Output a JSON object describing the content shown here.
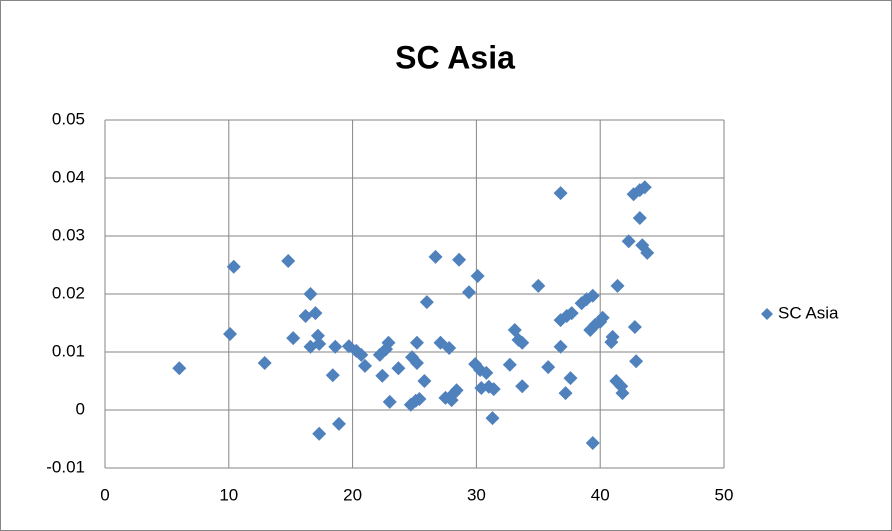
{
  "chart_data": {
    "type": "scatter",
    "title": "SC Asia",
    "x": [
      6.0,
      10.1,
      10.4,
      12.9,
      14.8,
      15.2,
      16.2,
      16.6,
      16.6,
      17.0,
      17.2,
      17.3,
      17.3,
      18.4,
      18.6,
      18.9,
      19.7,
      20.3,
      20.7,
      21.0,
      22.2,
      22.4,
      22.7,
      22.9,
      23.0,
      23.7,
      24.7,
      24.8,
      25.1,
      25.2,
      25.2,
      25.4,
      25.8,
      26.0,
      26.7,
      27.1,
      27.5,
      27.8,
      28.0,
      28.2,
      28.4,
      28.6,
      29.4,
      29.9,
      30.1,
      30.3,
      30.4,
      30.8,
      31.0,
      31.3,
      31.4,
      32.7,
      33.1,
      33.4,
      33.7,
      33.7,
      35.0,
      35.8,
      36.8,
      36.8,
      36.8,
      37.2,
      37.3,
      37.6,
      37.7,
      38.5,
      38.9,
      39.2,
      39.4,
      39.4,
      39.6,
      40.0,
      40.2,
      40.9,
      41.0,
      41.3,
      41.4,
      41.7,
      41.8,
      42.3,
      42.7,
      42.8,
      42.9,
      43.2,
      43.2,
      43.4,
      43.6,
      43.8
    ],
    "series": [
      {
        "name": "SC Asia",
        "color": "#4f81bd",
        "values": [
          0.0072,
          0.0131,
          0.0247,
          0.0081,
          0.0257,
          0.0124,
          0.0162,
          0.02,
          0.0109,
          0.0167,
          0.0128,
          0.0114,
          -0.0041,
          0.006,
          0.0109,
          -0.0024,
          0.011,
          0.0102,
          0.0095,
          0.0076,
          0.0095,
          0.0059,
          0.0105,
          0.0116,
          0.0014,
          0.0072,
          0.0009,
          0.0091,
          0.0016,
          0.0081,
          0.0116,
          0.0019,
          0.005,
          0.0186,
          0.0264,
          0.0116,
          0.0021,
          0.0107,
          0.0017,
          0.0029,
          0.0034,
          0.0259,
          0.0203,
          0.0079,
          0.0231,
          0.0069,
          0.0038,
          0.0064,
          0.004,
          -0.0014,
          0.0036,
          0.0078,
          0.0138,
          0.0121,
          0.0116,
          0.0041,
          0.0214,
          0.0074,
          0.0374,
          0.0109,
          0.0155,
          0.0029,
          0.0162,
          0.0055,
          0.0167,
          0.0184,
          0.0191,
          0.0138,
          0.0197,
          -0.0057,
          0.0147,
          0.0152,
          0.0159,
          0.0117,
          0.0126,
          0.005,
          0.0214,
          0.0041,
          0.0029,
          0.0291,
          0.0372,
          0.0143,
          0.0084,
          0.0331,
          0.0379,
          0.0284,
          0.0384,
          0.0271
        ]
      }
    ],
    "xlim": [
      0,
      50
    ],
    "xticks": [
      0,
      10,
      20,
      30,
      40,
      50
    ],
    "ylim": [
      -0.01,
      0.05
    ],
    "yticks": [
      -0.01,
      0,
      0.01,
      0.02,
      0.03,
      0.04,
      0.05
    ],
    "grid": true,
    "legend": "right"
  }
}
